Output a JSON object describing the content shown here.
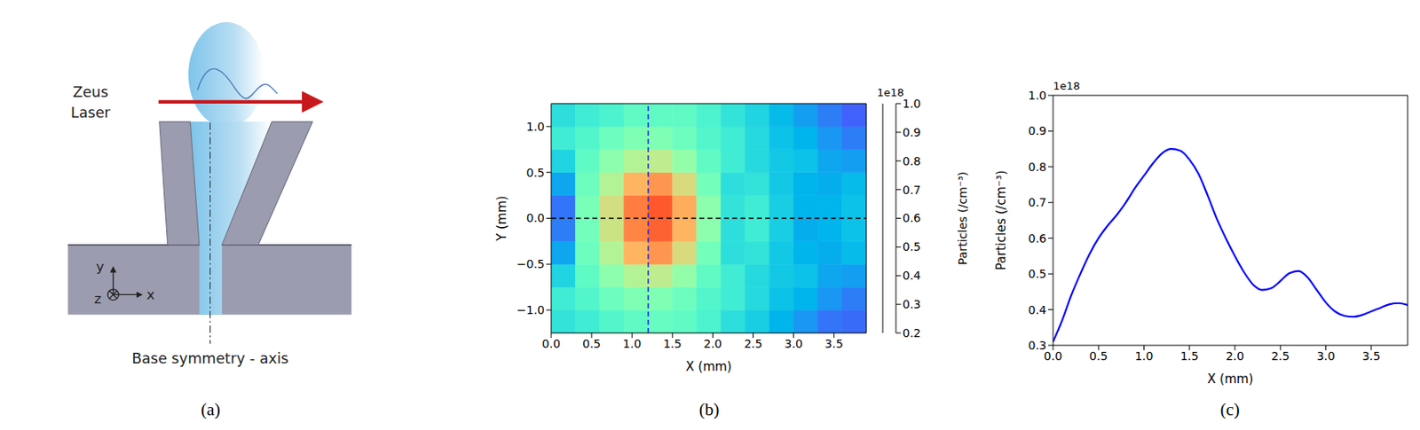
{
  "diagram": {
    "panel_label": "(a)",
    "laser_label": "Zeus Laser",
    "axis_label": "Base symmetry - axis",
    "axes": {
      "x": "x",
      "y": "y",
      "z": "z"
    }
  },
  "chart_data": [
    {
      "type": "heatmap",
      "panel_label": "(b)",
      "x_label": "X (mm)",
      "y_label": "Y (mm)",
      "xlim": [
        0,
        3.9
      ],
      "ylim": [
        -1.25,
        1.25
      ],
      "xticks": [
        {
          "value": 0,
          "label": "0.0"
        },
        0.5,
        {
          "value": 1,
          "label": "1.0"
        },
        1.5,
        {
          "value": 2,
          "label": "2.0"
        },
        2.5,
        {
          "value": 3,
          "label": "3.0"
        },
        3.5
      ],
      "yticks": [
        {
          "value": -1,
          "label": "−1.0"
        },
        {
          "value": -0.5,
          "label": "−0.5"
        },
        {
          "value": 0,
          "label": "0.0"
        },
        0.5,
        {
          "value": 1,
          "label": "1.0"
        }
      ],
      "x_edges": [
        0,
        0.3,
        0.6,
        0.9,
        1.2,
        1.5,
        1.8,
        2.1,
        2.4,
        2.7,
        3.0,
        3.3,
        3.6,
        3.9
      ],
      "y_edges": [
        -1.25,
        -1,
        -0.75,
        -0.5,
        -0.25,
        0,
        0.25,
        0.5,
        0.75,
        1,
        1.25
      ],
      "cells": [
        [
          0.48,
          0.5,
          0.53,
          0.55,
          0.56,
          0.55,
          0.52,
          0.47,
          0.44,
          0.4,
          0.36,
          0.32,
          0.31
        ],
        [
          0.5,
          0.53,
          0.57,
          0.6,
          0.6,
          0.57,
          0.53,
          0.5,
          0.46,
          0.42,
          0.4,
          0.36,
          0.33
        ],
        [
          0.45,
          0.55,
          0.62,
          0.68,
          0.7,
          0.63,
          0.55,
          0.5,
          0.46,
          0.43,
          0.42,
          0.38,
          0.37
        ],
        [
          0.38,
          0.57,
          0.68,
          0.8,
          0.84,
          0.74,
          0.58,
          0.47,
          0.48,
          0.43,
          0.4,
          0.39,
          0.41
        ],
        [
          0.33,
          0.58,
          0.72,
          0.86,
          0.9,
          0.8,
          0.62,
          0.47,
          0.5,
          0.44,
          0.39,
          0.4,
          0.42
        ],
        [
          0.32,
          0.59,
          0.73,
          0.87,
          0.91,
          0.81,
          0.62,
          0.48,
          0.5,
          0.44,
          0.4,
          0.4,
          0.42
        ],
        [
          0.38,
          0.57,
          0.68,
          0.8,
          0.84,
          0.74,
          0.58,
          0.47,
          0.48,
          0.43,
          0.4,
          0.39,
          0.41
        ],
        [
          0.45,
          0.55,
          0.62,
          0.68,
          0.7,
          0.63,
          0.55,
          0.5,
          0.46,
          0.43,
          0.42,
          0.38,
          0.37
        ],
        [
          0.5,
          0.53,
          0.57,
          0.6,
          0.6,
          0.57,
          0.53,
          0.5,
          0.46,
          0.42,
          0.4,
          0.36,
          0.33
        ],
        [
          0.47,
          0.5,
          0.52,
          0.55,
          0.55,
          0.55,
          0.52,
          0.48,
          0.45,
          0.41,
          0.37,
          0.33,
          0.3
        ]
      ],
      "colorbar": {
        "label": "Particles (/cm⁻³)",
        "offset_label": "1e18",
        "range": [
          0.2,
          1.0
        ],
        "ticks": [
          0.2,
          0.3,
          0.4,
          0.5,
          0.6,
          0.7,
          0.8,
          0.9,
          {
            "value": 1,
            "label": "1.0"
          }
        ]
      },
      "reference_lines": [
        {
          "axis": "x",
          "value": 1.2,
          "color": "#1f2fe0",
          "line_style": "dashed"
        },
        {
          "axis": "y",
          "value": 0,
          "color": "#000000",
          "line_style": "dashed"
        }
      ]
    },
    {
      "type": "line",
      "panel_label": "(c)",
      "x_label": "X (mm)",
      "y_label": "Particles (/cm⁻³)",
      "offset_label": "1e18",
      "color": "#0000ff",
      "grid": false,
      "xlim": [
        0,
        3.9
      ],
      "ylim": [
        0.3,
        1.0
      ],
      "xticks": [
        {
          "value": 0,
          "label": "0.0"
        },
        0.5,
        {
          "value": 1,
          "label": "1.0"
        },
        1.5,
        {
          "value": 2,
          "label": "2.0"
        },
        2.5,
        {
          "value": 3,
          "label": "3.0"
        },
        3.5
      ],
      "yticks": [
        0.3,
        0.4,
        0.5,
        0.6,
        0.7,
        0.8,
        0.9,
        {
          "value": 1,
          "label": "1.0"
        }
      ],
      "x": [
        0,
        0.1,
        0.2,
        0.3,
        0.4,
        0.5,
        0.6,
        0.7,
        0.8,
        0.9,
        1.0,
        1.1,
        1.2,
        1.3,
        1.4,
        1.5,
        1.6,
        1.7,
        1.8,
        1.9,
        2.0,
        2.1,
        2.2,
        2.3,
        2.4,
        2.5,
        2.6,
        2.7,
        2.8,
        2.9,
        3.0,
        3.1,
        3.2,
        3.3,
        3.4,
        3.5,
        3.6,
        3.7,
        3.8,
        3.9
      ],
      "values": [
        0.31,
        0.37,
        0.44,
        0.5,
        0.555,
        0.6,
        0.635,
        0.665,
        0.7,
        0.74,
        0.775,
        0.81,
        0.838,
        0.85,
        0.845,
        0.82,
        0.78,
        0.72,
        0.655,
        0.6,
        0.55,
        0.505,
        0.47,
        0.455,
        0.46,
        0.48,
        0.502,
        0.508,
        0.49,
        0.455,
        0.42,
        0.395,
        0.383,
        0.38,
        0.385,
        0.395,
        0.405,
        0.415,
        0.418,
        0.413
      ]
    }
  ]
}
